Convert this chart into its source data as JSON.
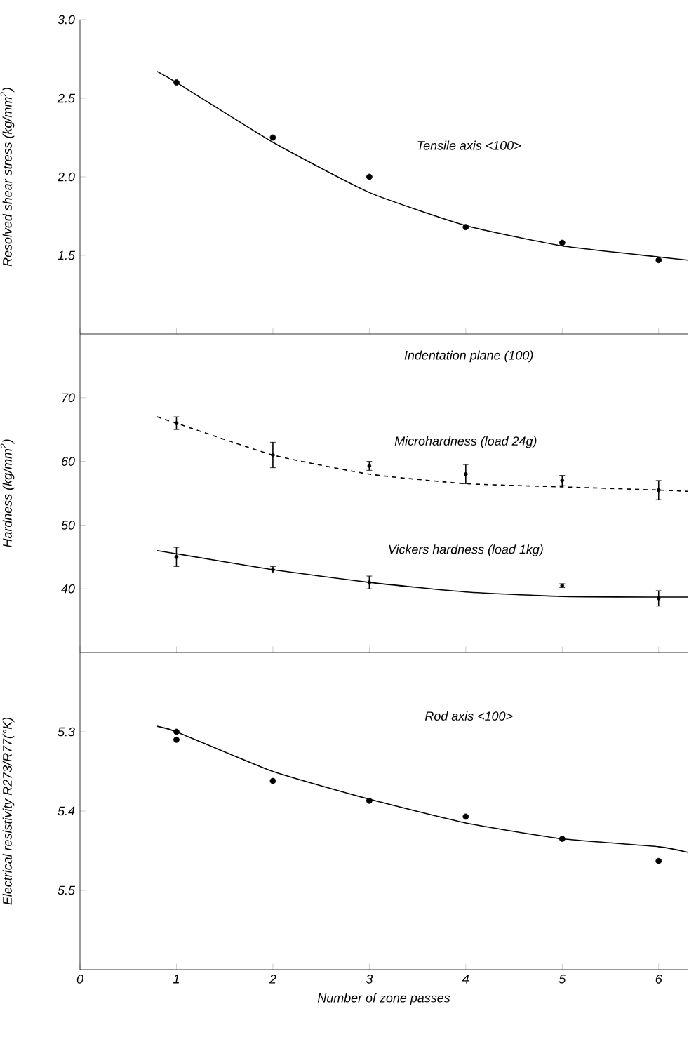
{
  "chart_data": [
    {
      "type": "scatter",
      "ylabel": "Resolved shear stress (kg/mm$^{2}$)",
      "annotations": [
        "Tensile axis <100>"
      ],
      "xlim": [
        0,
        6.3
      ],
      "xticks": [
        0,
        1,
        2,
        3,
        4,
        5,
        6
      ],
      "ylim": [
        1.0,
        3.0
      ],
      "yticks": [
        1.5,
        {
          "value": 2,
          "label": "2.0"
        },
        2.5,
        {
          "value": 3,
          "label": "3.0"
        }
      ],
      "tick_labels": "y",
      "grid": false,
      "series": [
        {
          "marker": "circle",
          "color": "#000000",
          "x": [
            1,
            2,
            3,
            4,
            5,
            6
          ],
          "values": [
            2.6,
            2.25,
            2.0,
            1.68,
            1.58,
            1.47
          ]
        },
        {
          "type": "line",
          "line_style": "solid",
          "color": "#000000",
          "x": [
            0.8,
            1,
            2,
            3,
            4,
            5,
            6,
            6.3
          ],
          "values": [
            2.67,
            2.6,
            2.22,
            1.9,
            1.69,
            1.56,
            1.49,
            1.47
          ]
        }
      ]
    },
    {
      "type": "scatter",
      "ylabel": "Hardness (kg/mm$^{2}$)",
      "annotations": [
        "Indentation plane (100)"
      ],
      "xlim": [
        0,
        6.3
      ],
      "xticks": [
        0,
        1,
        2,
        3,
        4,
        5,
        6
      ],
      "ylim": [
        30,
        80
      ],
      "yticks": [
        40,
        50,
        60,
        70
      ],
      "tick_labels": "y",
      "grid": false,
      "series": [
        {
          "marker": "circle",
          "color": "#000000",
          "x": [
            1,
            2,
            3,
            4,
            5,
            6
          ],
          "values": [
            66,
            61,
            59.3,
            58,
            57,
            55.5
          ],
          "errors": [
            1,
            2,
            0.7,
            1.5,
            0.8,
            1.5
          ]
        },
        {
          "type": "line",
          "name": "Microhardness (load 24g)",
          "line_style": "dashed",
          "color": "#000000",
          "x": [
            0.8,
            1,
            2,
            3,
            4,
            5,
            6,
            6.3
          ],
          "values": [
            67,
            66,
            61,
            58,
            56.5,
            56,
            55.5,
            55.3
          ]
        },
        {
          "marker": "circle",
          "color": "#000000",
          "x": [
            1,
            2,
            3,
            5,
            6
          ],
          "values": [
            45,
            43,
            41,
            40.5,
            38.5
          ],
          "errors": [
            1.5,
            0.5,
            1,
            0.3,
            1.2
          ]
        },
        {
          "type": "line",
          "name": "Vickers hardness (load 1kg)",
          "line_style": "solid",
          "color": "#000000",
          "x": [
            0.8,
            1,
            2,
            3,
            4,
            5,
            6,
            6.3
          ],
          "values": [
            46,
            45.5,
            43,
            41,
            39.5,
            38.8,
            38.7,
            38.7
          ]
        }
      ]
    },
    {
      "type": "scatter",
      "xlabel": "Number of zone passes",
      "ylabel": "Electrical resistivity R273/R77(°K)",
      "annotations": [
        "Rod axis <100>"
      ],
      "xlim": [
        0,
        6.3
      ],
      "xticks": [
        0,
        1,
        2,
        3,
        4,
        5,
        6
      ],
      "ylim": [
        5.6,
        5.2
      ],
      "yticks": [
        5.3,
        5.4,
        5.5
      ],
      "grid": false,
      "series": [
        {
          "marker": "circle",
          "color": "#000000",
          "x": [
            1,
            1,
            2,
            3,
            4,
            5,
            6
          ],
          "values": [
            5.3,
            5.31,
            5.362,
            5.387,
            5.407,
            5.435,
            5.463
          ]
        },
        {
          "type": "line",
          "line_style": "solid",
          "color": "#000000",
          "x": [
            0.8,
            1,
            2,
            3,
            4,
            5,
            6,
            6.3
          ],
          "values": [
            5.293,
            5.3,
            5.35,
            5.385,
            5.415,
            5.435,
            5.445,
            5.452
          ]
        }
      ]
    }
  ]
}
